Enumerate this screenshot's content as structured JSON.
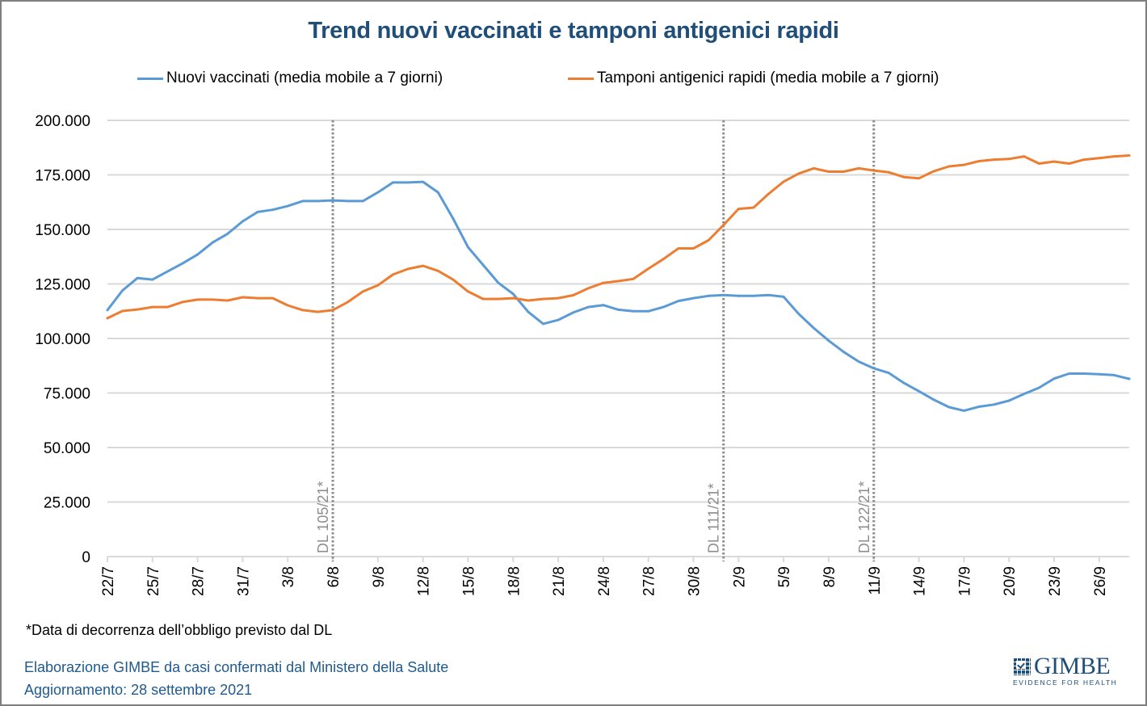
{
  "chart_data": {
    "type": "line",
    "title": "Trend nuovi vaccinati e tamponi antigenici rapidi",
    "xlabel": "",
    "ylabel": "",
    "ylim": [
      0,
      200000
    ],
    "yticks": [
      0,
      25000,
      50000,
      75000,
      100000,
      125000,
      150000,
      175000,
      200000
    ],
    "ytick_labels": [
      "0",
      "25.000",
      "50.000",
      "75.000",
      "100.000",
      "125.000",
      "150.000",
      "175.000",
      "200.000"
    ],
    "grid": true,
    "legend_position": "top",
    "x": [
      "22/7",
      "23/7",
      "24/7",
      "25/7",
      "26/7",
      "27/7",
      "28/7",
      "29/7",
      "30/7",
      "31/7",
      "1/8",
      "2/8",
      "3/8",
      "4/8",
      "5/8",
      "6/8",
      "7/8",
      "8/8",
      "9/8",
      "10/8",
      "11/8",
      "12/8",
      "13/8",
      "14/8",
      "15/8",
      "16/8",
      "17/8",
      "18/8",
      "19/8",
      "20/8",
      "21/8",
      "22/8",
      "23/8",
      "24/8",
      "25/8",
      "26/8",
      "27/8",
      "28/8",
      "29/8",
      "30/8",
      "31/8",
      "1/9",
      "2/9",
      "3/9",
      "4/9",
      "5/9",
      "6/9",
      "7/9",
      "8/9",
      "9/9",
      "10/9",
      "11/9",
      "12/9",
      "13/9",
      "14/9",
      "15/9",
      "16/9",
      "17/9",
      "18/9",
      "19/9",
      "20/9",
      "21/9",
      "22/9",
      "23/9",
      "24/9",
      "25/9",
      "26/9",
      "27/9",
      "28/9"
    ],
    "xtick_labels": [
      "22/7",
      "25/7",
      "28/7",
      "31/7",
      "3/8",
      "6/8",
      "9/8",
      "12/8",
      "15/8",
      "18/8",
      "21/8",
      "24/8",
      "27/8",
      "30/8",
      "2/9",
      "5/9",
      "8/9",
      "11/9",
      "14/9",
      "17/9",
      "20/9",
      "23/9",
      "26/9"
    ],
    "series": [
      {
        "name": "Nuovi vaccinati (media mobile a 7 giorni)",
        "color": "#5b9bd5",
        "values": [
          113000,
          122000,
          127700,
          127000,
          130700,
          134400,
          138500,
          144000,
          148000,
          153700,
          158000,
          159000,
          160700,
          163000,
          163000,
          163300,
          163000,
          163000,
          167000,
          171500,
          171500,
          171800,
          167000,
          155000,
          141800,
          133700,
          125600,
          120400,
          112200,
          106700,
          108500,
          111900,
          114400,
          115300,
          113200,
          112500,
          112500,
          114400,
          117200,
          118500,
          119500,
          119900,
          119500,
          119500,
          119900,
          119100,
          111300,
          104800,
          99000,
          93800,
          89400,
          86300,
          84200,
          79600,
          75800,
          71900,
          68500,
          66900,
          68700,
          69700,
          71500,
          74600,
          77400,
          81600,
          83900,
          83900,
          83600,
          83200,
          81500
        ]
      },
      {
        "name": "Tamponi antigenici rapidi (media mobile a 7 giorni)",
        "color": "#ed7d31",
        "values": [
          109300,
          112600,
          113300,
          114400,
          114400,
          116700,
          117800,
          117800,
          117400,
          118900,
          118500,
          118500,
          115200,
          113000,
          112200,
          113000,
          116700,
          121500,
          124400,
          129300,
          131900,
          133300,
          131000,
          127000,
          121500,
          118100,
          118100,
          118500,
          117400,
          118100,
          118500,
          119800,
          123000,
          125500,
          126300,
          127300,
          132000,
          136400,
          141300,
          141300,
          145000,
          152000,
          159400,
          160000,
          166300,
          171900,
          175600,
          178000,
          176500,
          176500,
          178000,
          177000,
          176200,
          174000,
          173400,
          176700,
          178900,
          179600,
          181300,
          182000,
          182300,
          183500,
          180200,
          181100,
          180200,
          182000,
          182700,
          183500,
          183900
        ]
      }
    ],
    "annotations": [
      {
        "x": "6/8",
        "label": "DL 105/21*",
        "style": "dotted-vertical-line"
      },
      {
        "x": "1/9",
        "label": "DL 111/21*",
        "style": "dotted-vertical-line"
      },
      {
        "x": "11/9",
        "label": "DL 122/21*",
        "style": "dotted-vertical-line"
      }
    ]
  },
  "footnote": "*Data di decorrenza dell’obbligo previsto dal DL",
  "source_line1": "Elaborazione GIMBE da casi confermati dal Ministero della Salute",
  "source_line2": "Aggiornamento: 28 settembre 2021",
  "logo": {
    "name": "GIMBE",
    "tagline": "EVIDENCE FOR HEALTH"
  },
  "colors": {
    "title": "#1f4e79",
    "source_text": "#1f5a8f",
    "grid": "#d9d9d9",
    "annotation": "#8c8c8c"
  }
}
